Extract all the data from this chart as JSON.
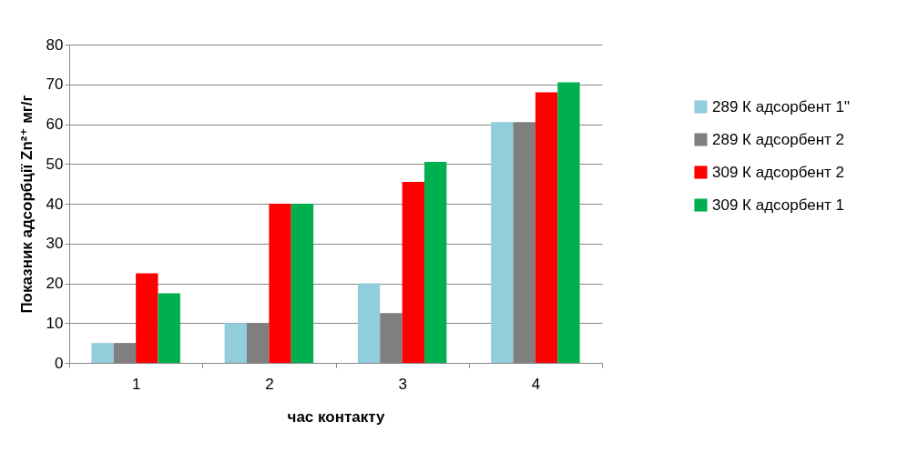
{
  "chart_data": {
    "type": "bar",
    "xlabel": "час контакту",
    "ylabel": "Показник адсорбції Zn²⁺ мг/г",
    "categories": [
      "1",
      "2",
      "3",
      "4"
    ],
    "series": [
      {
        "name": "289 К адсорбент 1\"",
        "color": "#92cddc",
        "values": [
          5,
          10,
          20,
          60.5
        ]
      },
      {
        "name": "289 К адсорбент 2",
        "color": "#7f7f7f",
        "values": [
          5,
          10,
          12.5,
          60.5
        ]
      },
      {
        "name": "309 К адсорбент 2",
        "color": "#ff0000",
        "values": [
          22.5,
          40,
          45.5,
          68
        ]
      },
      {
        "name": "309 К адсорбент 1",
        "color": "#00b050",
        "values": [
          17.5,
          40,
          50.5,
          70.5
        ]
      }
    ],
    "ylim": [
      0,
      80
    ],
    "yticks": [
      0,
      10,
      20,
      30,
      40,
      50,
      60,
      70,
      80
    ],
    "grid": "y",
    "legend": "right"
  }
}
